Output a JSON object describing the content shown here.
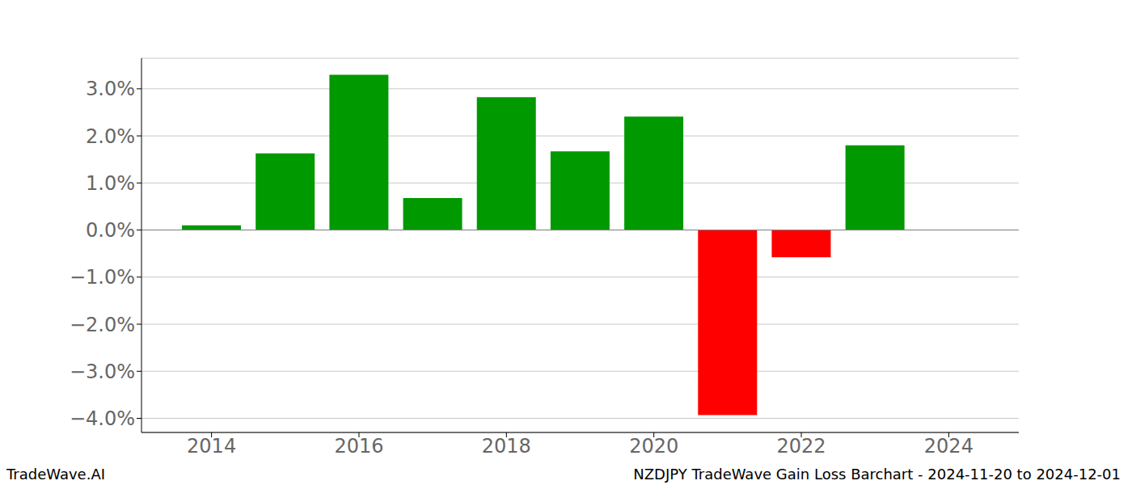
{
  "chart_data": {
    "type": "bar",
    "x": [
      2014,
      2015,
      2016,
      2017,
      2018,
      2019,
      2020,
      2021,
      2022,
      2023
    ],
    "values": [
      0.1,
      1.63,
      3.3,
      0.68,
      2.82,
      1.67,
      2.41,
      -3.93,
      -0.58,
      1.8
    ],
    "colors": [
      "#009900",
      "#009900",
      "#009900",
      "#009900",
      "#009900",
      "#009900",
      "#009900",
      "#ff0000",
      "#ff0000",
      "#009900"
    ],
    "xlim": [
      2013.05,
      2024.95
    ],
    "xticks": [
      2014,
      2016,
      2018,
      2020,
      2022,
      2024
    ],
    "ylim": [
      -4.3,
      3.65
    ],
    "yticks": [
      {
        "value": -4,
        "label": "−4.0%"
      },
      {
        "value": -3,
        "label": "−3.0%"
      },
      {
        "value": -2,
        "label": "−2.0%"
      },
      {
        "value": -1,
        "label": "−1.0%"
      },
      {
        "value": 0,
        "label": "0.0%"
      },
      {
        "value": 1,
        "label": "1.0%"
      },
      {
        "value": 2,
        "label": "2.0%"
      },
      {
        "value": 3,
        "label": "3.0%"
      }
    ],
    "grid": true,
    "annotations": [
      "TradeWave.AI",
      "NZDJPY TradeWave Gain Loss Barchart - 2024-11-20 to 2024-12-01"
    ]
  }
}
